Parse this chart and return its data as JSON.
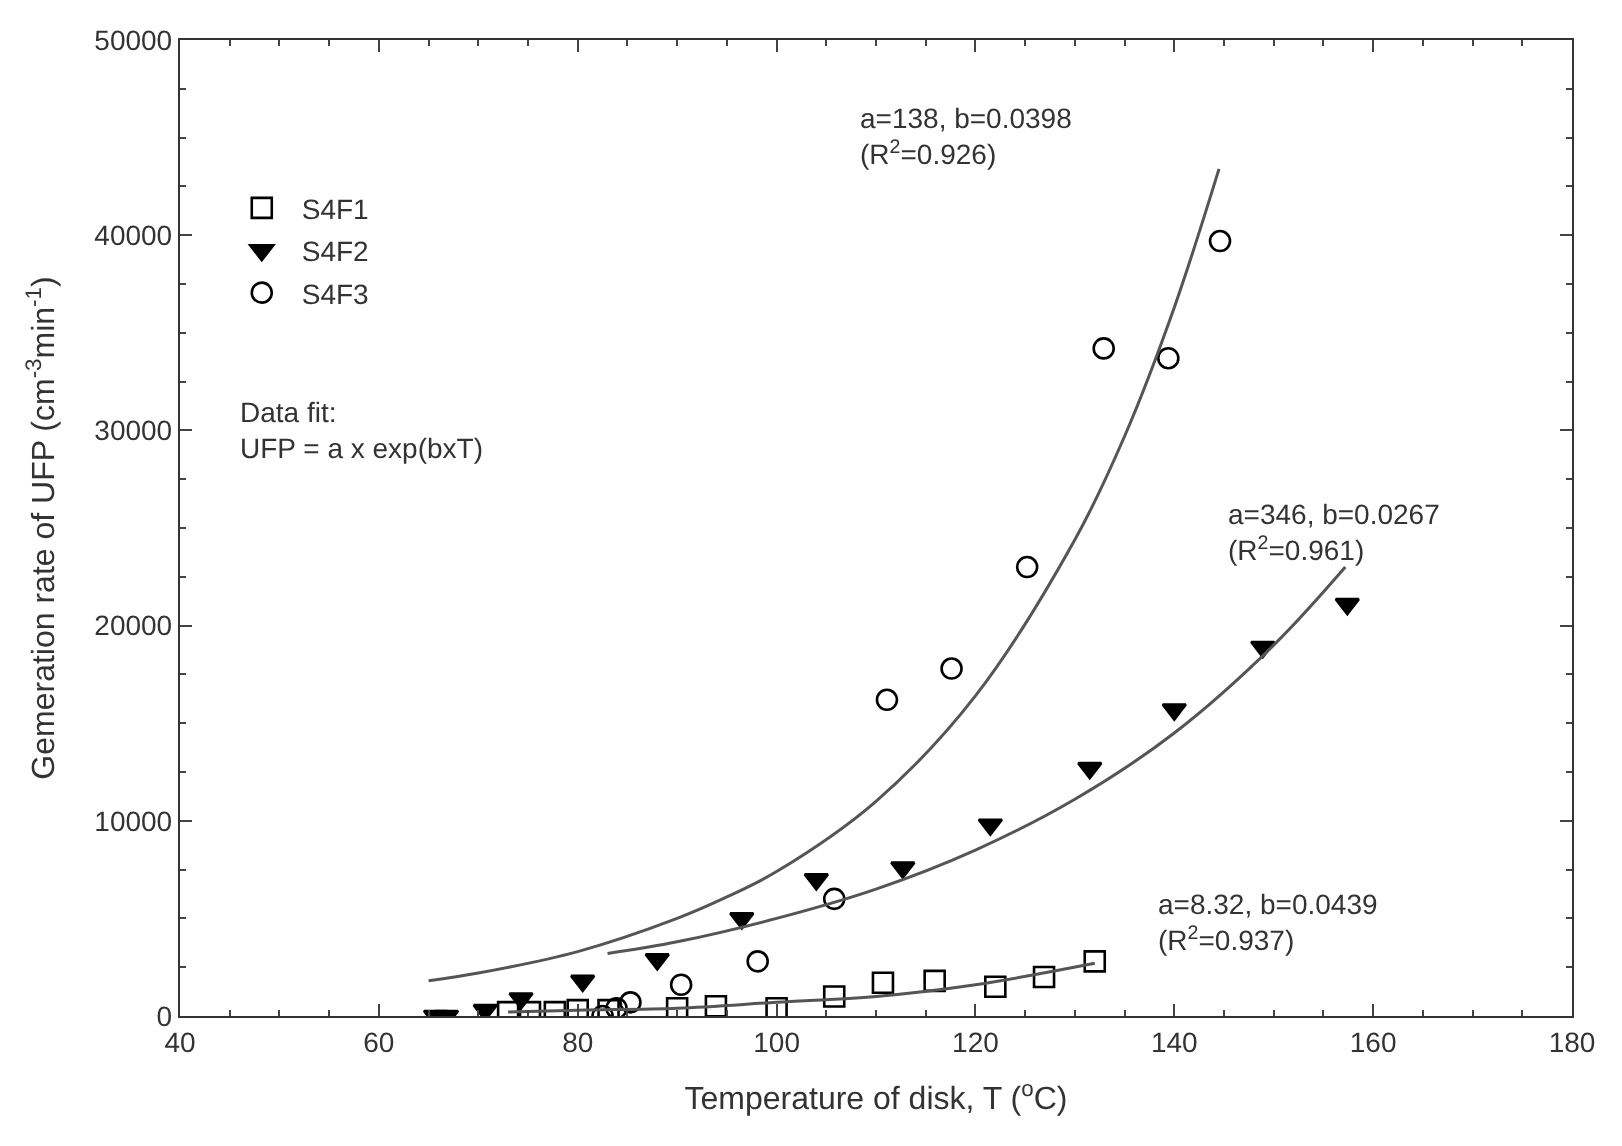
{
  "chart_data": {
    "type": "scatter",
    "xlabel": "Temperature of disk, T ($^{o}$C)",
    "ylabel": "Gemeration rate of UFP (cm$^{-3}$min$^{-1}$)",
    "xlim": [
      40,
      180
    ],
    "xticks": [
      40,
      60,
      80,
      100,
      120,
      140,
      160,
      180
    ],
    "ylim": [
      0,
      50000
    ],
    "yticks": [
      0,
      10000,
      20000,
      30000,
      40000,
      50000
    ],
    "legend": "top left",
    "series": [
      {
        "name": "S4F1",
        "color": "#000000",
        "marker": "square",
        "x": [
          73,
          75.2,
          77.7,
          80,
          83.1,
          90,
          93.9,
          100,
          105.8,
          110.7,
          115.9,
          122,
          126.9,
          132
        ],
        "values": [
          200,
          200,
          200,
          300,
          300,
          400,
          500,
          400,
          1000,
          1700,
          1800,
          1500,
          2000,
          2800
        ]
      },
      {
        "name": "S4F2",
        "color": "#000000",
        "marker": "triangle",
        "x": [
          65.7,
          66.8,
          70.7,
          74.3,
          80.5,
          88,
          96.5,
          104,
          112.7,
          121.5,
          131.5,
          140,
          148.9,
          157.4
        ],
        "values": [
          0,
          0,
          300,
          900,
          1800,
          2900,
          5000,
          7000,
          7600,
          9800,
          12700,
          15700,
          18900,
          21100
        ]
      },
      {
        "name": "S4F3",
        "color": "#000000",
        "marker": "circle",
        "x": [
          82.5,
          83.9,
          85.3,
          90.4,
          98.1,
          105.8,
          111.1,
          117.6,
          125.2,
          132.9,
          139.4,
          144.6
        ],
        "values": [
          0,
          400,
          700,
          1600,
          2800,
          6000,
          16200,
          17800,
          23000,
          34200,
          33700,
          39700
        ]
      },
      {
        "type": "line",
        "color": "#555555",
        "marker": "none",
        "x": [
          73,
          80,
          90,
          100,
          110,
          120,
          132
        ],
        "values": [
          200,
          300,
          400,
          700,
          1000,
          1600,
          2700
        ]
      },
      {
        "type": "line",
        "color": "#555555",
        "marker": "none",
        "x": [
          83,
          90,
          100,
          110,
          120,
          130,
          140,
          150,
          157.2
        ],
        "values": [
          3200,
          3800,
          5000,
          6500,
          8500,
          11100,
          14500,
          19000,
          23000
        ]
      },
      {
        "type": "line",
        "color": "#555555",
        "marker": "none",
        "x": [
          65,
          70,
          80,
          90,
          95,
          100,
          110,
          120,
          130,
          135,
          140,
          144.5
        ],
        "values": [
          1800,
          2200,
          3300,
          5000,
          6100,
          7400,
          11000,
          16400,
          24400,
          29700,
          36300,
          43400
        ]
      }
    ],
    "annotations": [
      "a=138, b=0.0398\n(R$^{2}$=0.926)",
      "a=346, b=0.0267\n(R$^{2}$=0.961)",
      "a=8.32, b=0.0439\n(R$^{2}$=0.937)",
      "Data fit:\nUFP = a x exp(bxT)"
    ]
  }
}
